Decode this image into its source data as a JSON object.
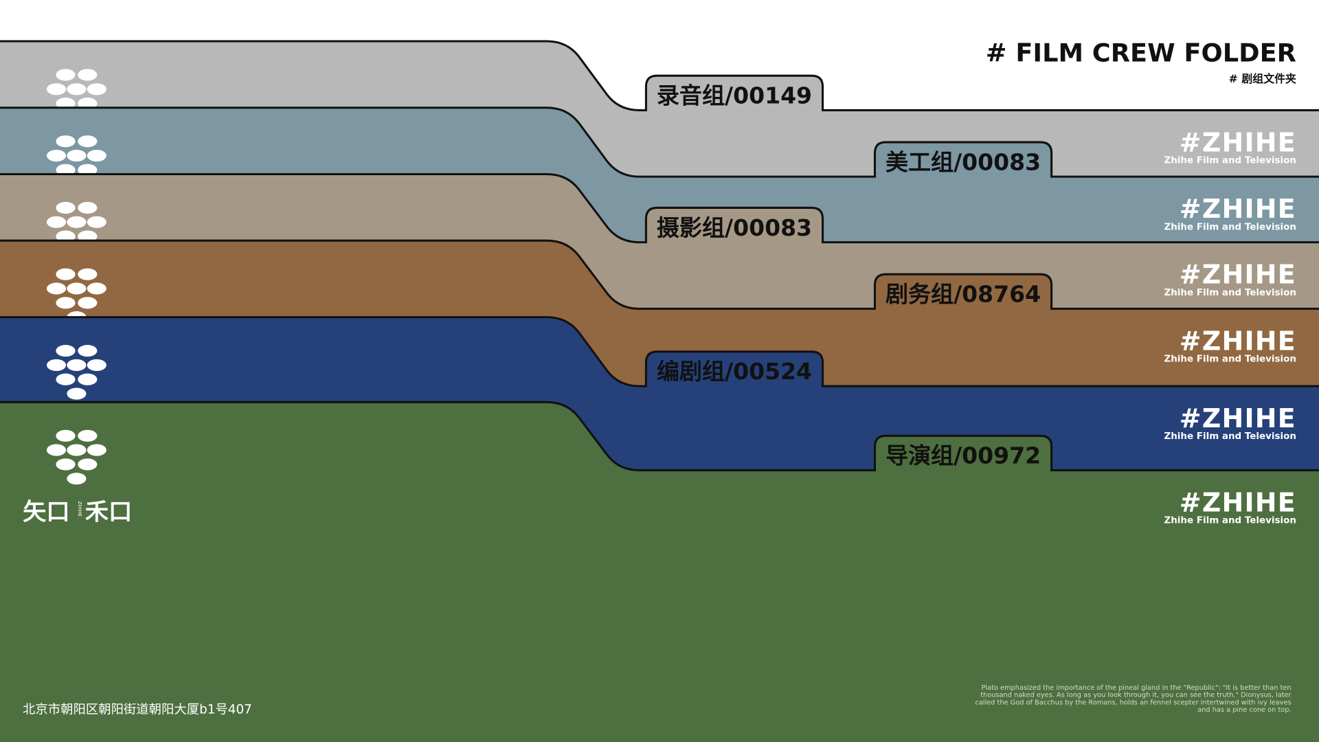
{
  "header": {
    "title": "# FILM CREW FOLDER",
    "subtitle": "# 剧组文件夹"
  },
  "brand": {
    "name": "#ZHIHE",
    "tagline": "Zhihe Film and Television",
    "logo_left": "矢口",
    "logo_mid": "ZHIHE",
    "logo_right": "禾口"
  },
  "folders": [
    {
      "label": "录音组/00149"
    },
    {
      "label": "美工组/00083"
    },
    {
      "label": "摄影组/00083"
    },
    {
      "label": "剧务组/08764"
    },
    {
      "label": "编剧组/00524"
    },
    {
      "label": "导演组/00972"
    }
  ],
  "footer": {
    "address": "北京市朝阳区朝阳街道朝阳大厦b1号407",
    "quote": [
      "Plato emphasized the importance of the pineal gland in the \"Republic\": \"It is better than ten",
      "thousand naked eyes. As long as you look through it, you can see the truth.\" Dionysus, later",
      "called the God of Bacchus by the Romans, holds an fennel scepter intertwined with ivy leaves",
      "and has a pine cone on top."
    ]
  }
}
